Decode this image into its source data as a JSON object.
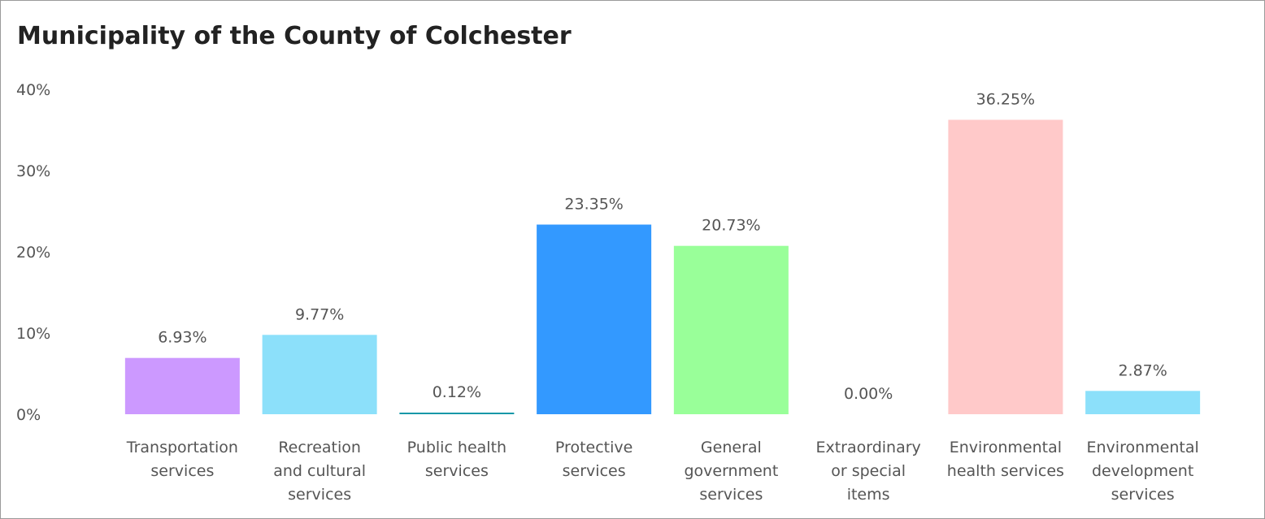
{
  "chart_data": {
    "type": "bar",
    "title": "Municipality of the County of Colchester",
    "categories": [
      [
        "Transportation",
        "services"
      ],
      [
        "Recreation",
        "and cultural",
        "services"
      ],
      [
        "Public health",
        "services"
      ],
      [
        "Protective",
        "services"
      ],
      [
        "General",
        "government",
        "services"
      ],
      [
        "Extraordinary",
        "or special",
        "items"
      ],
      [
        "Environmental",
        "health services"
      ],
      [
        "Environmental",
        "development",
        "services"
      ]
    ],
    "values": [
      6.93,
      9.77,
      0.12,
      23.35,
      20.73,
      0.0,
      36.25,
      2.87
    ],
    "value_labels": [
      "6.93%",
      "9.77%",
      "0.12%",
      "23.35%",
      "20.73%",
      "0.00%",
      "36.25%",
      "2.87%"
    ],
    "colors": [
      "#cc99ff",
      "#8ce0fa",
      "#1597a8",
      "#3399ff",
      "#99ff99",
      "#cccccc",
      "#ffc9c9",
      "#8ce0fa"
    ],
    "ylim": [
      0,
      40
    ],
    "yticks": [
      0,
      10,
      20,
      30,
      40
    ],
    "ytick_labels": [
      "0%",
      "10%",
      "20%",
      "30%",
      "40%"
    ],
    "xlabel": "",
    "ylabel": "",
    "grid": false,
    "legend": "none"
  }
}
